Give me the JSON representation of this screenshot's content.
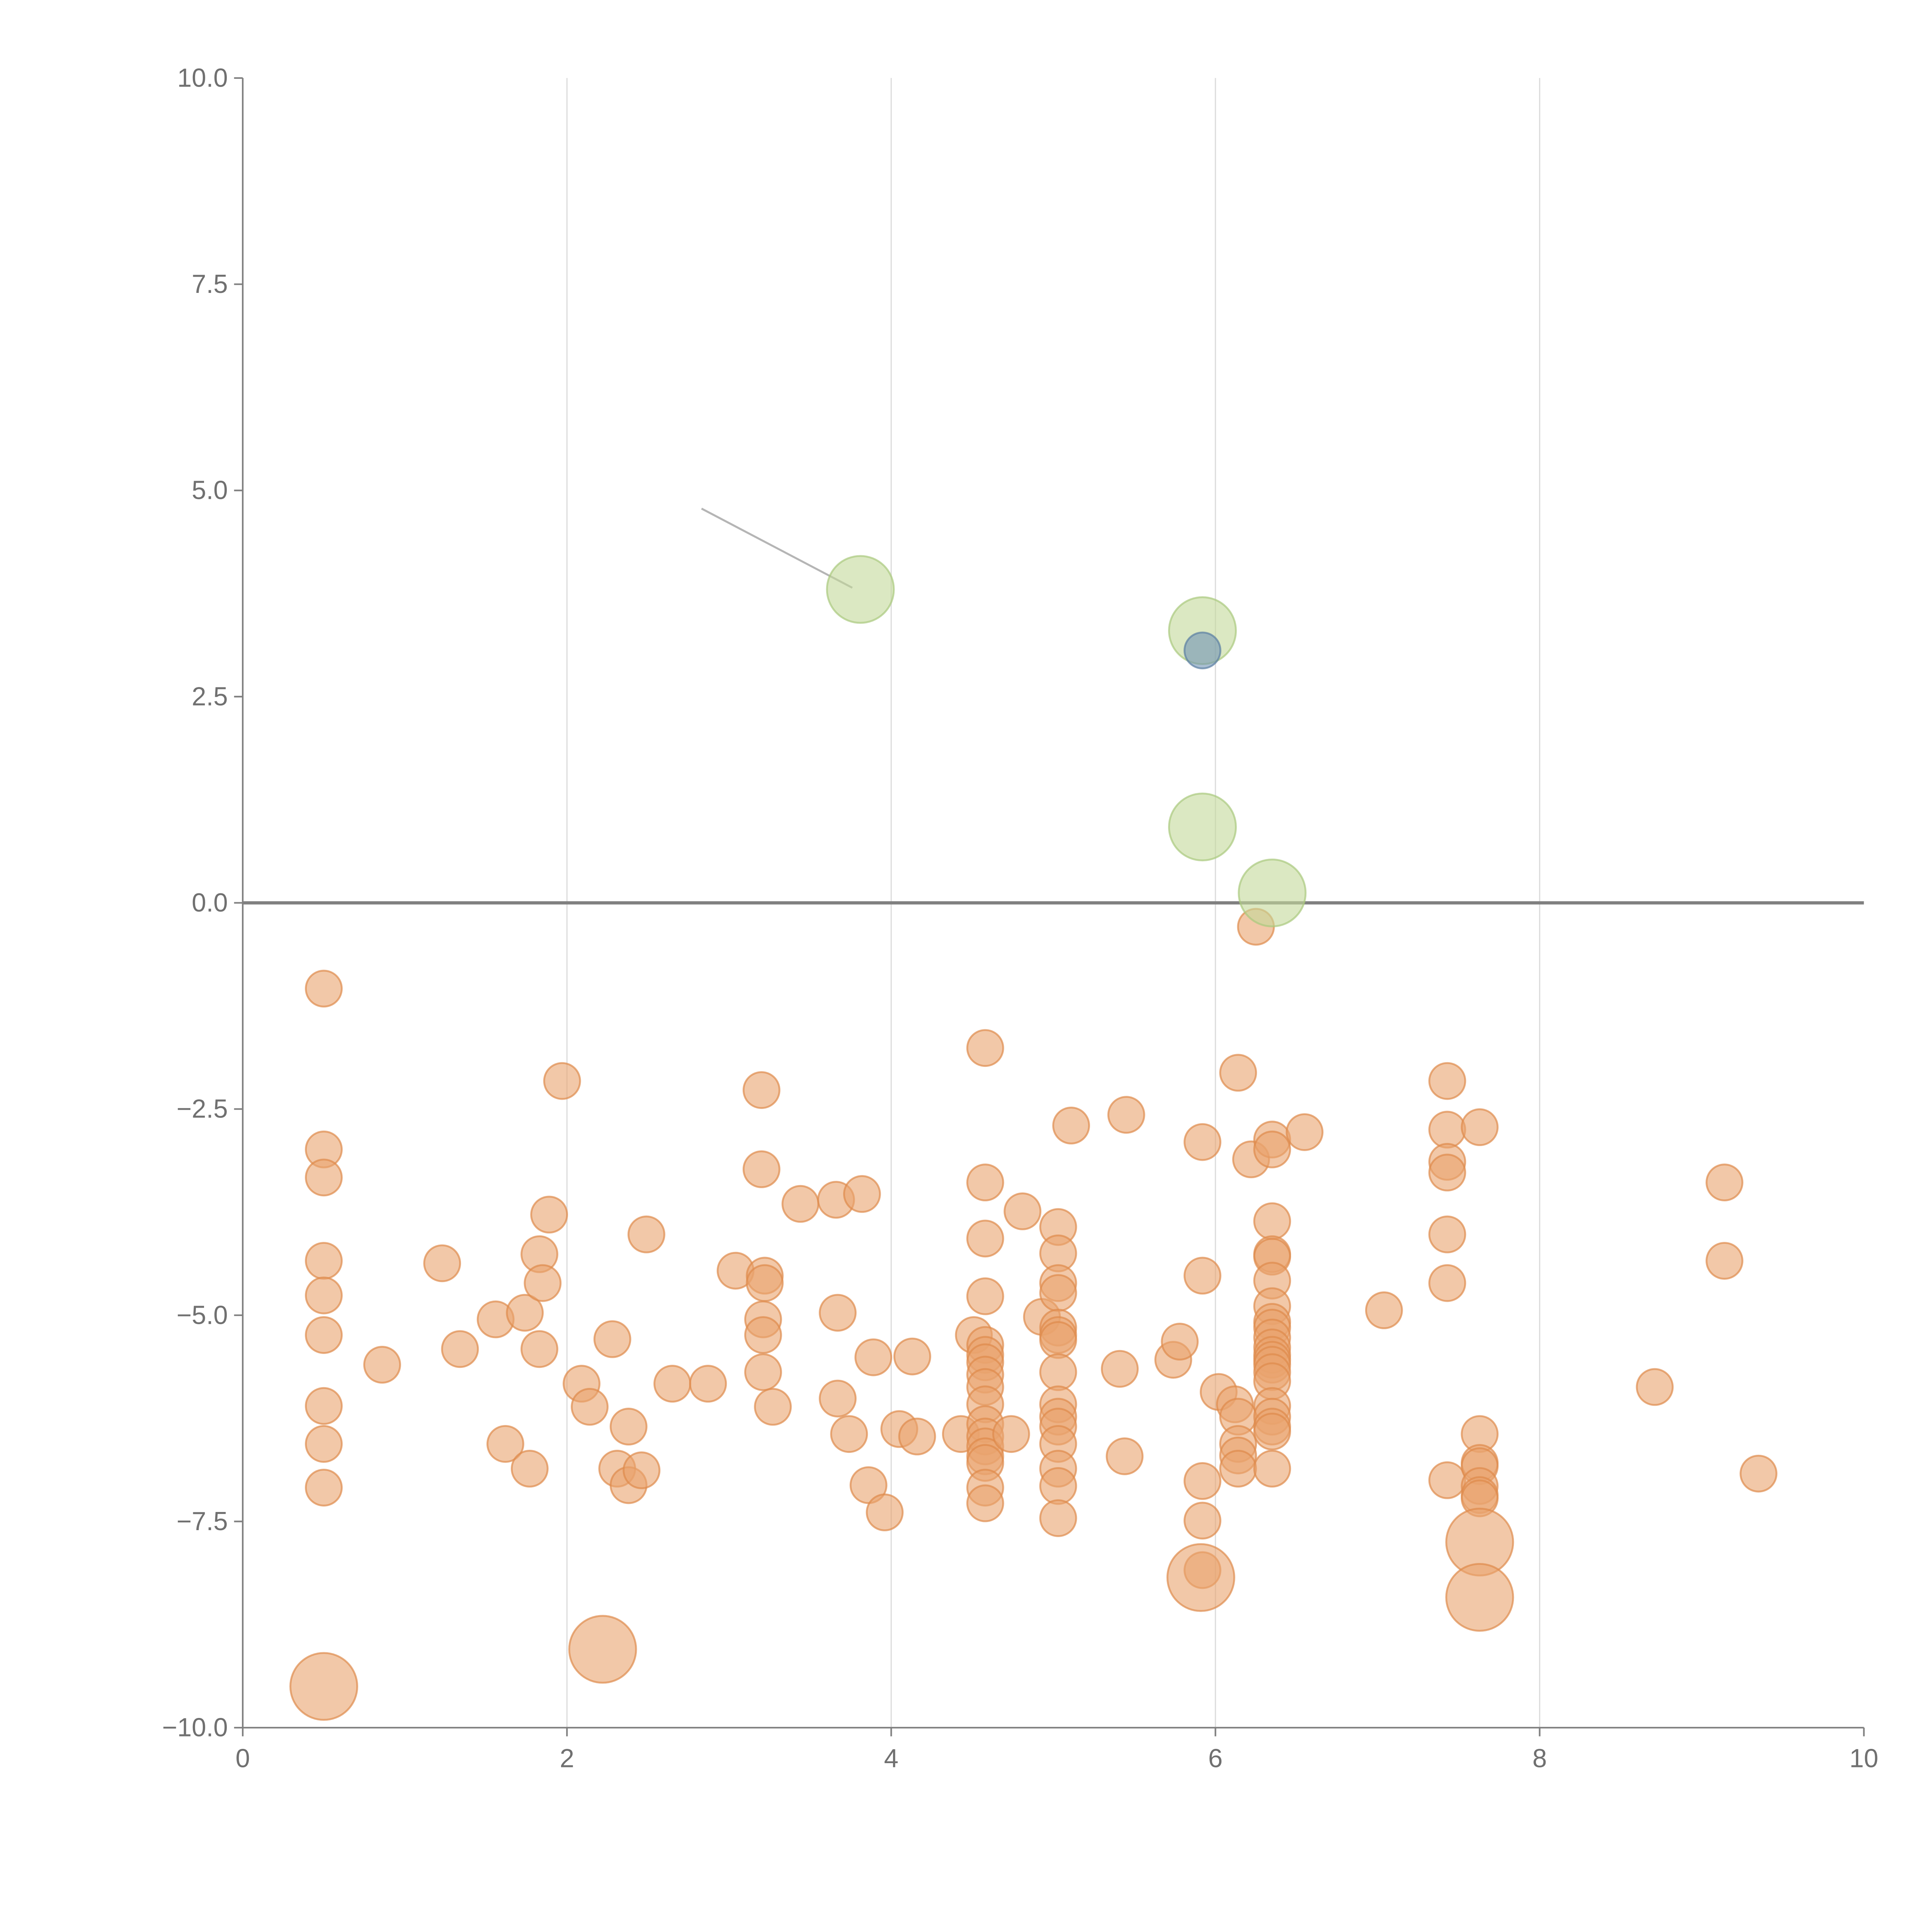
{
  "chart_data": {
    "type": "scatter",
    "title": "",
    "xlabel": "",
    "ylabel": "",
    "xlim": [
      0,
      10
    ],
    "ylim": [
      -10,
      10
    ],
    "grid": "vertical",
    "x_ticks": [
      0,
      2,
      4,
      6,
      8,
      10
    ],
    "x_tick_labels": [
      "0",
      "2",
      "4",
      "6",
      "8",
      "10"
    ],
    "y_ticks": [
      10,
      7.5,
      5,
      2.5,
      0,
      -2.5,
      -5,
      -7.5,
      -10
    ],
    "y_tick_labels": [
      "10.0",
      "7.5",
      "5.0",
      "2.5",
      "0.0",
      "−2.5",
      "−5.0",
      "−7.5",
      "−10.0"
    ],
    "reference_line_y": 0,
    "colors": {
      "orange_fill": "#e9a46e",
      "orange_stroke": "#de8a4c",
      "green_fill": "#c3d99a",
      "green_stroke": "#a9c97e",
      "blue_fill": "#6f92b4",
      "blue_stroke": "#5b7fa3",
      "grid": "#dddddd",
      "axis": "#808080"
    },
    "series": [
      {
        "name": "orange",
        "color": "orange",
        "size": 1,
        "points": [
          [
            0.5,
            -1.04
          ],
          [
            0.5,
            -2.99
          ],
          [
            0.5,
            -3.33
          ],
          [
            0.5,
            -4.34
          ],
          [
            0.5,
            -4.76
          ],
          [
            0.5,
            -5.24
          ],
          [
            0.5,
            -6.1
          ],
          [
            0.5,
            -6.56
          ],
          [
            0.5,
            -7.09
          ],
          [
            0.86,
            -5.6
          ],
          [
            1.23,
            -4.37
          ],
          [
            1.34,
            -5.41
          ],
          [
            1.56,
            -5.05
          ],
          [
            1.62,
            -6.56
          ],
          [
            1.74,
            -4.97
          ],
          [
            1.77,
            -6.86
          ],
          [
            1.83,
            -4.26
          ],
          [
            1.85,
            -4.61
          ],
          [
            1.83,
            -5.41
          ],
          [
            1.89,
            -3.78
          ],
          [
            1.97,
            -2.16
          ],
          [
            2.09,
            -5.83
          ],
          [
            2.14,
            -6.11
          ],
          [
            2.28,
            -5.29
          ],
          [
            2.31,
            -6.86
          ],
          [
            2.38,
            -6.35
          ],
          [
            2.38,
            -7.06
          ],
          [
            2.46,
            -6.88
          ],
          [
            2.49,
            -4.02
          ],
          [
            2.65,
            -5.83
          ],
          [
            2.87,
            -5.83
          ],
          [
            3.04,
            -4.46
          ],
          [
            3.2,
            -2.27
          ],
          [
            3.2,
            -3.23
          ],
          [
            3.22,
            -4.52
          ],
          [
            3.22,
            -4.61
          ],
          [
            3.21,
            -5.05
          ],
          [
            3.21,
            -5.24
          ],
          [
            3.21,
            -5.69
          ],
          [
            3.27,
            -6.11
          ],
          [
            3.44,
            -3.65
          ],
          [
            3.66,
            -3.6
          ],
          [
            3.67,
            -4.97
          ],
          [
            3.67,
            -6.01
          ],
          [
            3.74,
            -6.44
          ],
          [
            3.82,
            -3.53
          ],
          [
            3.86,
            -7.06
          ],
          [
            3.89,
            -5.51
          ],
          [
            3.96,
            -7.39
          ],
          [
            4.05,
            -6.38
          ],
          [
            4.13,
            -5.5
          ],
          [
            4.16,
            -6.47
          ],
          [
            4.43,
            -6.44
          ],
          [
            4.51,
            -5.24
          ],
          [
            4.58,
            -1.76
          ],
          [
            4.58,
            -3.39
          ],
          [
            4.58,
            -4.07
          ],
          [
            4.58,
            -4.77
          ],
          [
            4.58,
            -5.36
          ],
          [
            4.58,
            -5.48
          ],
          [
            4.58,
            -5.57
          ],
          [
            4.58,
            -5.72
          ],
          [
            4.58,
            -5.87
          ],
          [
            4.58,
            -6.08
          ],
          [
            4.58,
            -6.32
          ],
          [
            4.58,
            -6.47
          ],
          [
            4.58,
            -6.59
          ],
          [
            4.58,
            -6.71
          ],
          [
            4.58,
            -6.79
          ],
          [
            4.58,
            -7.09
          ],
          [
            4.58,
            -7.28
          ],
          [
            4.74,
            -6.44
          ],
          [
            4.81,
            -3.74
          ],
          [
            4.93,
            -5.02
          ],
          [
            5.03,
            -3.93
          ],
          [
            5.03,
            -4.25
          ],
          [
            5.03,
            -4.61
          ],
          [
            5.03,
            -4.73
          ],
          [
            5.03,
            -5.15
          ],
          [
            5.03,
            -5.24
          ],
          [
            5.03,
            -5.3
          ],
          [
            5.03,
            -5.69
          ],
          [
            5.03,
            -6.08
          ],
          [
            5.03,
            -6.23
          ],
          [
            5.03,
            -6.35
          ],
          [
            5.03,
            -6.56
          ],
          [
            5.03,
            -6.86
          ],
          [
            5.03,
            -7.07
          ],
          [
            5.03,
            -7.46
          ],
          [
            5.11,
            -2.7
          ],
          [
            5.41,
            -5.65
          ],
          [
            5.44,
            -6.71
          ],
          [
            5.45,
            -2.57
          ],
          [
            5.74,
            -5.54
          ],
          [
            5.78,
            -5.32
          ],
          [
            5.92,
            -2.9
          ],
          [
            5.92,
            -4.52
          ],
          [
            5.92,
            -7.01
          ],
          [
            5.92,
            -7.49
          ],
          [
            5.92,
            -8.09
          ],
          [
            6.02,
            -5.93
          ],
          [
            6.12,
            -6.08
          ],
          [
            6.14,
            -2.06
          ],
          [
            6.14,
            -6.23
          ],
          [
            6.14,
            -6.56
          ],
          [
            6.14,
            -6.7
          ],
          [
            6.14,
            -6.86
          ],
          [
            6.22,
            -3.11
          ],
          [
            6.25,
            -0.29
          ],
          [
            6.35,
            -2.87
          ],
          [
            6.35,
            -2.99
          ],
          [
            6.35,
            -3.86
          ],
          [
            6.35,
            -4.26
          ],
          [
            6.35,
            -4.29
          ],
          [
            6.35,
            -4.58
          ],
          [
            6.35,
            -4.89
          ],
          [
            6.35,
            -5.08
          ],
          [
            6.35,
            -5.15
          ],
          [
            6.35,
            -5.27
          ],
          [
            6.35,
            -5.39
          ],
          [
            6.35,
            -5.48
          ],
          [
            6.35,
            -5.54
          ],
          [
            6.35,
            -5.6
          ],
          [
            6.35,
            -5.69
          ],
          [
            6.35,
            -5.8
          ],
          [
            6.35,
            -6.1
          ],
          [
            6.35,
            -6.23
          ],
          [
            6.35,
            -6.35
          ],
          [
            6.35,
            -6.41
          ],
          [
            6.35,
            -6.86
          ],
          [
            6.55,
            -2.78
          ],
          [
            7.04,
            -4.94
          ],
          [
            7.43,
            -2.16
          ],
          [
            7.43,
            -2.75
          ],
          [
            7.43,
            -3.14
          ],
          [
            7.43,
            -3.27
          ],
          [
            7.43,
            -4.02
          ],
          [
            7.43,
            -4.61
          ],
          [
            7.43,
            -7.0
          ],
          [
            7.63,
            -2.72
          ],
          [
            7.63,
            -6.44
          ],
          [
            7.63,
            -6.79
          ],
          [
            7.63,
            -6.83
          ],
          [
            7.63,
            -7.07
          ],
          [
            7.63,
            -7.18
          ],
          [
            7.63,
            -7.22
          ],
          [
            8.71,
            -5.87
          ],
          [
            9.14,
            -3.39
          ],
          [
            9.14,
            -4.34
          ],
          [
            9.35,
            -6.92
          ]
        ]
      },
      {
        "name": "orange-large",
        "color": "orange",
        "size": 3,
        "points": [
          [
            0.5,
            -9.5
          ],
          [
            2.22,
            -9.05
          ],
          [
            5.91,
            -8.18
          ],
          [
            7.63,
            -7.75
          ],
          [
            7.63,
            -8.42
          ]
        ]
      },
      {
        "name": "green",
        "color": "green",
        "size": 3,
        "points": [
          [
            3.81,
            3.8
          ],
          [
            5.92,
            3.3
          ],
          [
            5.92,
            0.92
          ],
          [
            6.35,
            0.12
          ]
        ]
      },
      {
        "name": "blue",
        "color": "blue",
        "size": 1,
        "points": [
          [
            5.92,
            3.06
          ]
        ]
      }
    ],
    "annotations": [
      {
        "from": [
          2.83,
          4.78
        ],
        "to": [
          3.76,
          3.82
        ]
      }
    ]
  }
}
